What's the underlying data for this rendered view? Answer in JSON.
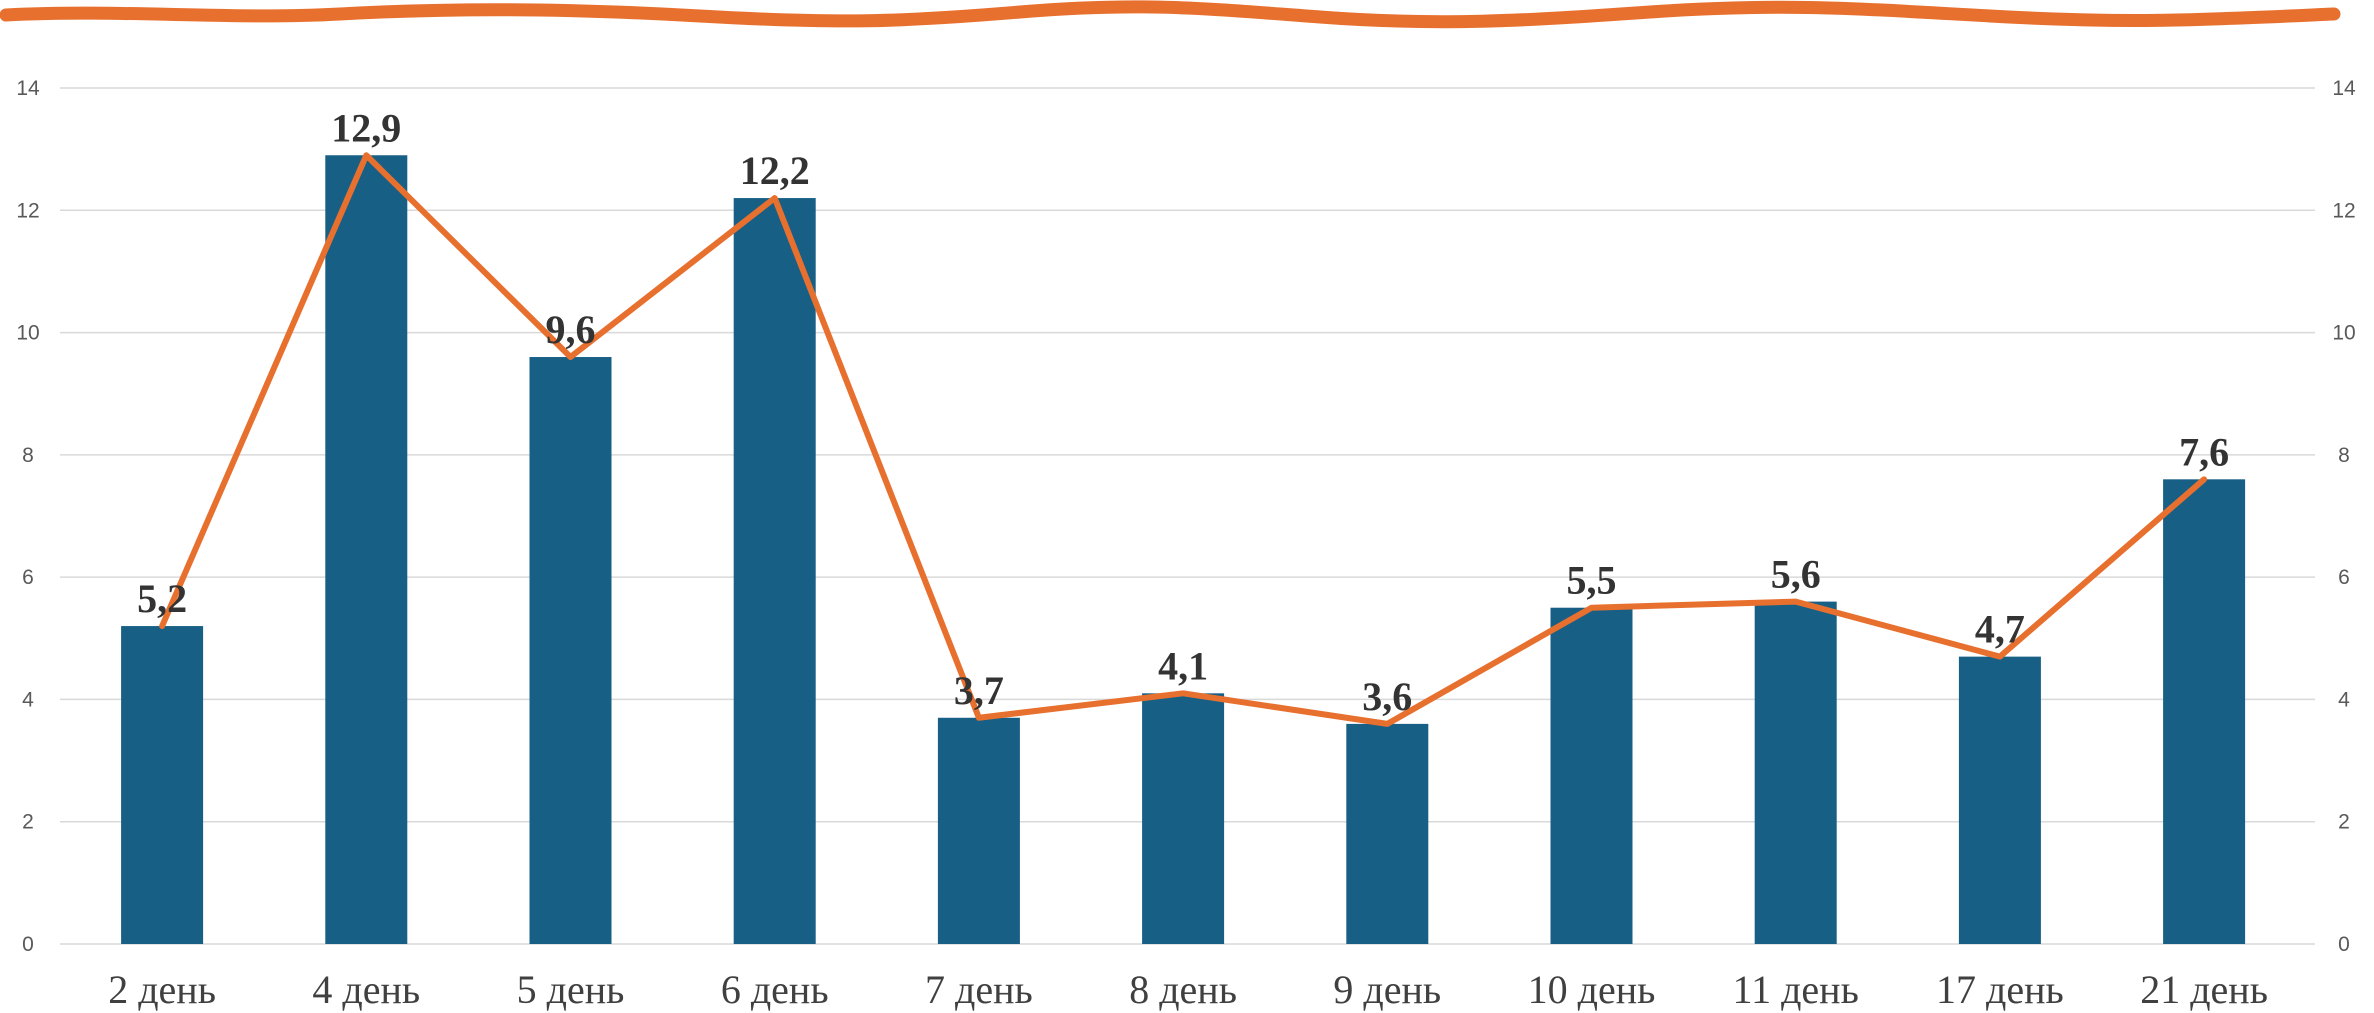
{
  "chart_data": {
    "type": "bar",
    "categories": [
      "2 день",
      "4 день",
      "5 день",
      "6 день",
      "7 день",
      "8 день",
      "9 день",
      "10 день",
      "11 день",
      "17 день",
      "21 день"
    ],
    "series": [
      {
        "type": "bar",
        "values": [
          5.2,
          12.9,
          9.6,
          12.2,
          3.7,
          4.1,
          3.6,
          5.5,
          5.6,
          4.7,
          7.6
        ]
      },
      {
        "type": "line",
        "values": [
          5.2,
          12.9,
          9.6,
          12.2,
          3.7,
          4.1,
          3.6,
          5.5,
          5.6,
          4.7,
          7.6
        ]
      }
    ],
    "data_labels": [
      "5,2",
      "12,9",
      "9,6",
      "12,2",
      "3,7",
      "4,1",
      "3,6",
      "5,5",
      "5,6",
      "4,7",
      "7,6"
    ],
    "y_ticks": [
      "0",
      "2",
      "4",
      "6",
      "8",
      "10",
      "12",
      "14"
    ],
    "y2_ticks": [
      "0",
      "2",
      "4",
      "6",
      "8",
      "10",
      "12",
      "14"
    ],
    "ylim": [
      0,
      14
    ],
    "y2lim": [
      0,
      14
    ],
    "grid": true,
    "legend": "none",
    "colors": {
      "bar": "#175f85",
      "line": "#e8702f",
      "top_stroke": "#e8702f",
      "grid": "#d9d9d9"
    }
  }
}
